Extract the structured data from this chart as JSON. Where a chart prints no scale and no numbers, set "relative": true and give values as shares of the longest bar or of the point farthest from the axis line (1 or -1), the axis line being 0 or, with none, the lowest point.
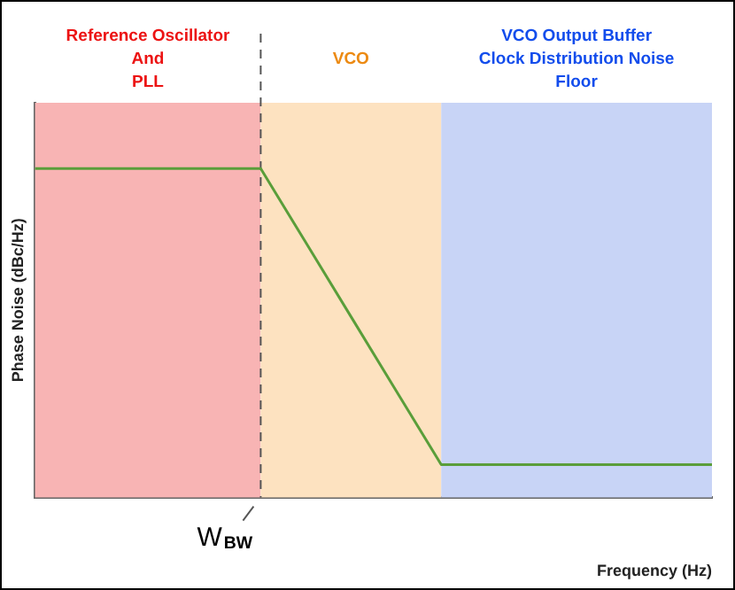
{
  "chart_data": {
    "type": "line",
    "relative": true,
    "xlabel": "Frequency (Hz)",
    "ylabel": "Phase Noise (dBc/Hz)",
    "grid": false,
    "legend": false,
    "marker": "none",
    "line_style": "solid",
    "categories": [
      null,
      null,
      null,
      null,
      null,
      null,
      null,
      null,
      null,
      null,
      null,
      null,
      null,
      null,
      null,
      null
    ],
    "series": [
      {
        "color": "#5a9e3a",
        "values": [
          1,
          1,
          1,
          1,
          1,
          1,
          0.775,
          0.55,
          0.325,
          0.1,
          0.1,
          0.1,
          0.1,
          0.1,
          0.1,
          0.1
        ]
      }
    ],
    "annotations": [
      "Reference Oscillator\nAnd\nPLL",
      "VCO",
      "VCO Output Buffer\nClock Distribution Noise\nFloor"
    ],
    "ref_lines": [
      {
        "axis": "x",
        "label": "W$_{BW}$",
        "line_style": "dashed",
        "color": "#555555"
      }
    ]
  }
}
